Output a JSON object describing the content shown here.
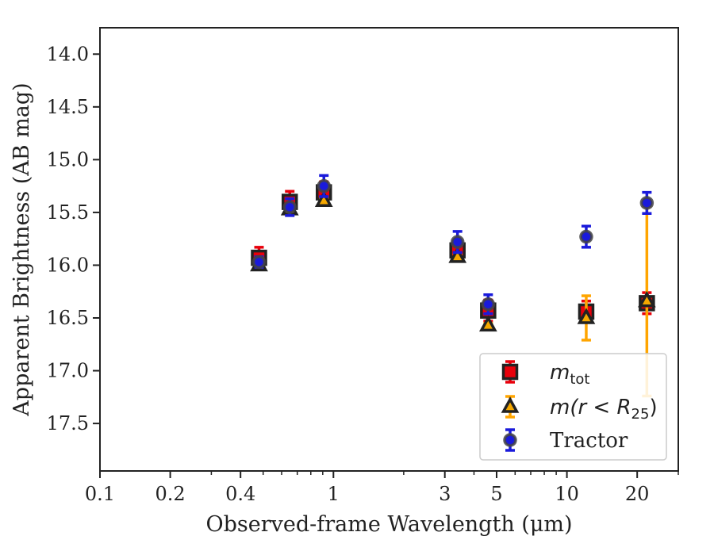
{
  "chart_data": {
    "type": "scatter",
    "title": "",
    "xlabel": "Observed-frame Wavelength (μm)",
    "ylabel": "Apparent Brightness (AB mag)",
    "x_scale": "log",
    "xlim": [
      0.1,
      30
    ],
    "ylim": [
      17.95,
      13.75
    ],
    "y_inverted": true,
    "x_ticks": [
      {
        "value": 0.1,
        "label": "0.1"
      },
      {
        "value": 0.2,
        "label": "0.2"
      },
      {
        "value": 0.4,
        "label": "0.4"
      },
      {
        "value": 1,
        "label": "1"
      },
      {
        "value": 3,
        "label": "3"
      },
      {
        "value": 5,
        "label": "5"
      },
      {
        "value": 10,
        "label": "10"
      },
      {
        "value": 20,
        "label": "20"
      }
    ],
    "x_minor_ticks": [
      0.3,
      0.5,
      0.6,
      0.7,
      0.8,
      0.9,
      2,
      4,
      6,
      7,
      8,
      9,
      30
    ],
    "y_ticks": [
      {
        "value": 14.0,
        "label": "14.0"
      },
      {
        "value": 14.5,
        "label": "14.5"
      },
      {
        "value": 15.0,
        "label": "15.0"
      },
      {
        "value": 15.5,
        "label": "15.5"
      },
      {
        "value": 16.0,
        "label": "16.0"
      },
      {
        "value": 16.5,
        "label": "16.5"
      },
      {
        "value": 17.0,
        "label": "17.0"
      },
      {
        "value": 17.5,
        "label": "17.5"
      }
    ],
    "legend_position": "lower-right",
    "grid": false,
    "series": [
      {
        "name": "m_tot",
        "legend_label": {
          "main": "m",
          "sub": "tot"
        },
        "marker": "square",
        "fill": "#e8000b",
        "edge": "#222222",
        "errcolor": "#e8000b",
        "points": [
          {
            "x": 0.48,
            "y": 15.93,
            "err": 0.1
          },
          {
            "x": 0.65,
            "y": 15.4,
            "err": 0.1
          },
          {
            "x": 0.91,
            "y": 15.31,
            "err": 0.1
          },
          {
            "x": 3.4,
            "y": 15.86,
            "err": 0.1
          },
          {
            "x": 4.6,
            "y": 16.43,
            "err": 0.1
          },
          {
            "x": 12.1,
            "y": 16.44,
            "err": 0.1
          },
          {
            "x": 22.0,
            "y": 16.36,
            "err": 0.1
          }
        ]
      },
      {
        "name": "m(r < R25)",
        "legend_label": {
          "main": "m(r < R",
          "sub": "25",
          "end": ")"
        },
        "marker": "triangle",
        "fill": "#f5a800",
        "edge": "#222222",
        "errcolor": "#ffa500",
        "points": [
          {
            "x": 0.48,
            "y": 16.0,
            "err": 0.02
          },
          {
            "x": 0.65,
            "y": 15.47,
            "err": 0.02
          },
          {
            "x": 0.91,
            "y": 15.39,
            "err": 0.02
          },
          {
            "x": 3.4,
            "y": 15.92,
            "err": 0.02
          },
          {
            "x": 4.6,
            "y": 16.57,
            "err": 0.02
          },
          {
            "x": 12.1,
            "y": 16.5,
            "err": 0.21
          },
          {
            "x": 22.0,
            "y": 16.34,
            "err": 0.9
          }
        ]
      },
      {
        "name": "Tractor",
        "legend_label": {
          "main": "Tractor"
        },
        "marker": "circle",
        "fill": "#1a1adb",
        "edge": "#444444",
        "errcolor": "#1a1adb",
        "points": [
          {
            "x": 0.48,
            "y": 15.97,
            "err": 0.05
          },
          {
            "x": 0.65,
            "y": 15.45,
            "err": 0.08
          },
          {
            "x": 0.91,
            "y": 15.25,
            "err": 0.1
          },
          {
            "x": 3.4,
            "y": 15.78,
            "err": 0.1
          },
          {
            "x": 4.6,
            "y": 16.37,
            "err": 0.09
          },
          {
            "x": 12.1,
            "y": 15.73,
            "err": 0.1
          },
          {
            "x": 22.0,
            "y": 15.41,
            "err": 0.1
          }
        ]
      }
    ]
  }
}
